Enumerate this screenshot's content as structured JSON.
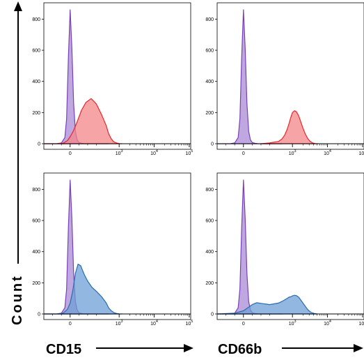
{
  "chart_data": {
    "type": "area",
    "y_axis_title": "Count",
    "x_axis_titles": [
      "CD15",
      "CD66b"
    ],
    "x_scale": "biexponential",
    "x_tick_labels": [
      "0",
      "10^3",
      "10^4",
      "10^5"
    ],
    "y_tick_labels": [
      "0",
      "200",
      "400",
      "600",
      "800"
    ],
    "ylim": [
      0,
      860
    ],
    "colors": {
      "control": "#7b3fb8",
      "red": "#e8252c",
      "blue": "#2a6cb0",
      "control_fill": "#a98ad6",
      "red_fill": "#f4868a",
      "blue_fill": "#6e9fd6"
    },
    "panels": [
      {
        "id": "top-left",
        "xlabel": "CD15",
        "series": [
          {
            "color_key": "control",
            "x": [
              -300,
              -150,
              -100,
              -60,
              -40,
              -20,
              0,
              20,
              40,
              60,
              80,
              100,
              130,
              160,
              200,
              260,
              320,
              400,
              500
            ],
            "values": [
              0,
              0,
              5,
              40,
              160,
              560,
              860,
              610,
              260,
              80,
              25,
              8,
              3,
              1,
              0,
              0,
              0,
              0,
              0
            ]
          },
          {
            "color_key": "red",
            "x": [
              -300,
              -150,
              -80,
              -30,
              0,
              40,
              80,
              130,
              180,
              240,
              300,
              360,
              430,
              500,
              600,
              700,
              850,
              1000,
              1200
            ],
            "values": [
              0,
              0,
              3,
              20,
              45,
              85,
              140,
              215,
              265,
              290,
              255,
              185,
              115,
              65,
              30,
              12,
              5,
              1,
              0
            ]
          }
        ]
      },
      {
        "id": "top-right",
        "xlabel": "CD66b",
        "series": [
          {
            "color_key": "control",
            "x": [
              -300,
              -150,
              -100,
              -60,
              -40,
              -20,
              0,
              20,
              40,
              60,
              80,
              100,
              130,
              160,
              200,
              260,
              320,
              400,
              500
            ],
            "values": [
              0,
              0,
              5,
              40,
              160,
              560,
              860,
              610,
              260,
              80,
              25,
              8,
              3,
              1,
              0,
              0,
              0,
              0,
              0
            ]
          },
          {
            "color_key": "red",
            "x": [
              200,
              300,
              400,
              500,
              600,
              700,
              800,
              900,
              1000,
              1150,
              1300,
              1500,
              1700,
              2000,
              2300,
              2700,
              3200,
              3800,
              4500,
              5500
            ],
            "values": [
              0,
              5,
              15,
              30,
              55,
              90,
              130,
              170,
              200,
              212,
              205,
              180,
              145,
              100,
              65,
              35,
              15,
              5,
              1,
              0
            ]
          }
        ]
      },
      {
        "id": "bottom-left",
        "xlabel": "CD15",
        "series": [
          {
            "color_key": "control",
            "x": [
              -300,
              -150,
              -100,
              -60,
              -40,
              -20,
              0,
              20,
              40,
              60,
              80,
              100,
              130,
              160,
              200,
              260,
              320,
              400,
              500
            ],
            "values": [
              0,
              0,
              5,
              40,
              160,
              560,
              860,
              610,
              260,
              80,
              25,
              8,
              3,
              1,
              0,
              0,
              0,
              0,
              0
            ]
          },
          {
            "color_key": "blue",
            "x": [
              -300,
              -150,
              -80,
              -30,
              0,
              30,
              60,
              90,
              120,
              160,
              200,
              250,
              300,
              360,
              430,
              500,
              600,
              720,
              850,
              1000,
              1200
            ],
            "values": [
              0,
              0,
              5,
              30,
              70,
              150,
              260,
              320,
              310,
              255,
              210,
              170,
              145,
              110,
              70,
              40,
              20,
              8,
              3,
              1,
              0
            ]
          }
        ]
      },
      {
        "id": "bottom-right",
        "xlabel": "CD66b",
        "series": [
          {
            "color_key": "control",
            "x": [
              -300,
              -150,
              -100,
              -60,
              -40,
              -20,
              0,
              20,
              40,
              60,
              80,
              100,
              130,
              160,
              200,
              260,
              320,
              400,
              500
            ],
            "values": [
              0,
              0,
              5,
              40,
              160,
              560,
              860,
              610,
              260,
              80,
              25,
              8,
              3,
              1,
              0,
              0,
              0,
              0,
              0
            ]
          },
          {
            "color_key": "blue",
            "x": [
              -300,
              -100,
              0,
              50,
              100,
              150,
              200,
              300,
              400,
              500,
              600,
              700,
              800,
              900,
              1000,
              1150,
              1300,
              1500,
              1700,
              2000,
              2400,
              2800,
              3400,
              4200,
              5000
            ],
            "values": [
              0,
              5,
              20,
              40,
              60,
              72,
              68,
              60,
              70,
              80,
              90,
              100,
              108,
              110,
              116,
              120,
              118,
              108,
              92,
              70,
              45,
              25,
              10,
              3,
              0
            ]
          }
        ]
      }
    ]
  }
}
